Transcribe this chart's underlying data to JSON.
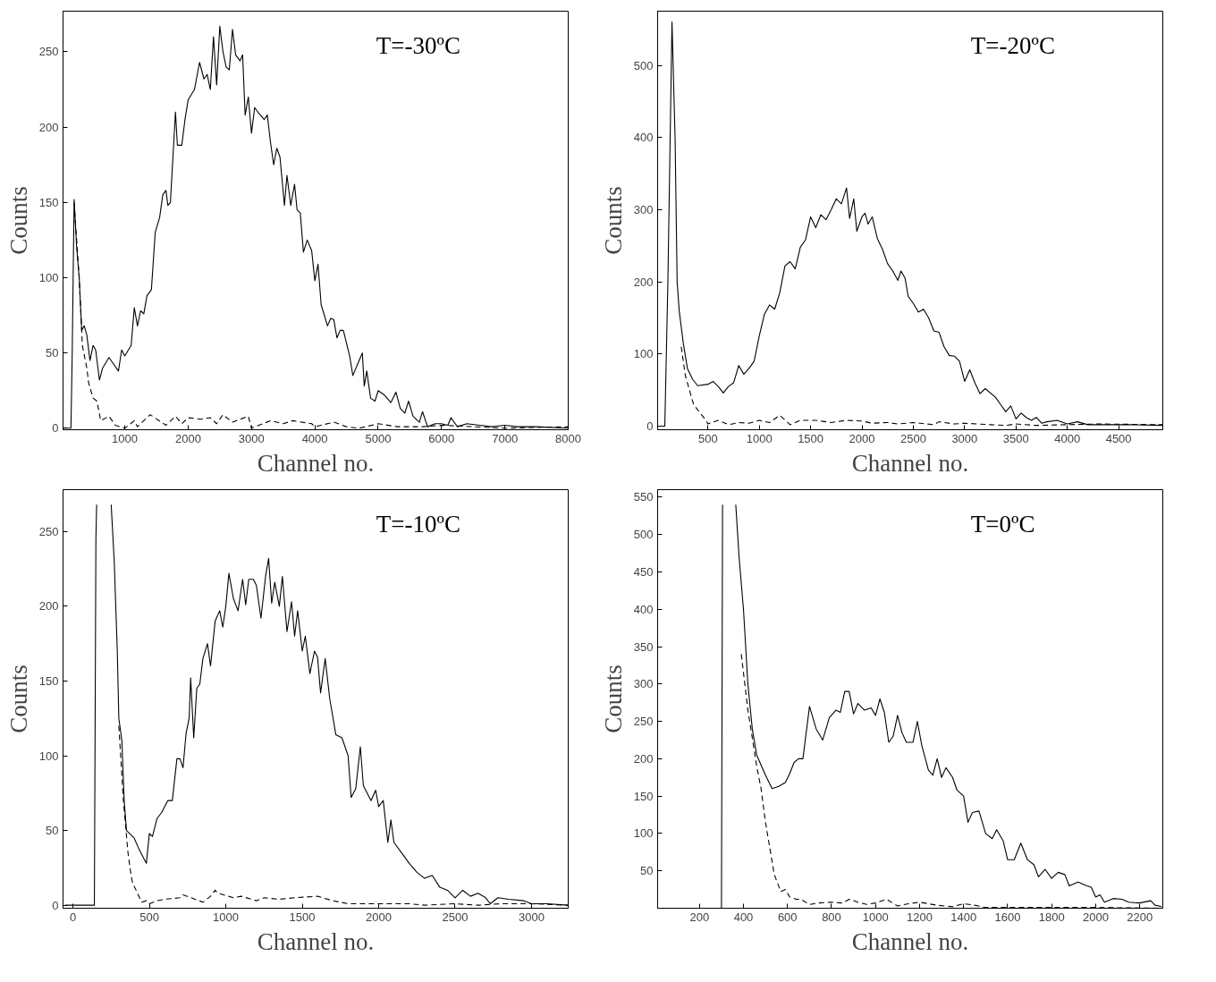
{
  "chart_data": [
    {
      "type": "line",
      "xlabel": "Channel no.",
      "ylabel": "Counts",
      "annotations": [
        "T=-30ºC"
      ],
      "xlim": [
        25,
        8000
      ],
      "ylim": [
        -1,
        277
      ],
      "xticks": [
        1000,
        2000,
        3000,
        4000,
        5000,
        6000,
        7000,
        8000
      ],
      "yticks": [
        0,
        50,
        100,
        150,
        200,
        250
      ],
      "grid": false,
      "series": [
        {
          "color": "#000000",
          "line_style": "solid",
          "x": [
            30,
            150,
            170,
            200,
            240,
            280,
            320,
            360,
            400,
            450,
            500,
            540,
            600,
            650,
            750,
            900,
            950,
            1000,
            1100,
            1150,
            1200,
            1250,
            1300,
            1350,
            1420,
            1480,
            1550,
            1600,
            1650,
            1680,
            1720,
            1800,
            1830,
            1900,
            1950,
            2000,
            2100,
            2180,
            2250,
            2300,
            2350,
            2400,
            2450,
            2500,
            2550,
            2600,
            2650,
            2700,
            2750,
            2820,
            2860,
            2900,
            2950,
            3000,
            3050,
            3100,
            3200,
            3250,
            3300,
            3350,
            3400,
            3450,
            3520,
            3560,
            3620,
            3680,
            3720,
            3770,
            3820,
            3880,
            3950,
            4000,
            4050,
            4100,
            4200,
            4250,
            4300,
            4350,
            4400,
            4450,
            4550,
            4600,
            4700,
            4750,
            4780,
            4820,
            4880,
            4950,
            5000,
            5100,
            5200,
            5280,
            5350,
            5420,
            5480,
            5550,
            5650,
            5700,
            5780,
            5900,
            6000,
            6100,
            6150,
            6250,
            6400,
            6600,
            6800,
            7000,
            7200,
            7500,
            8000
          ],
          "values": [
            0,
            0,
            50,
            152,
            120,
            100,
            65,
            68,
            62,
            45,
            55,
            52,
            32,
            40,
            47,
            38,
            52,
            48,
            55,
            80,
            68,
            78,
            76,
            88,
            92,
            130,
            140,
            155,
            158,
            148,
            150,
            210,
            188,
            188,
            205,
            218,
            225,
            243,
            232,
            235,
            225,
            260,
            228,
            267,
            250,
            240,
            238,
            265,
            248,
            244,
            248,
            208,
            220,
            196,
            213,
            210,
            205,
            208,
            190,
            175,
            186,
            180,
            148,
            168,
            148,
            162,
            145,
            143,
            117,
            125,
            118,
            98,
            109,
            82,
            68,
            73,
            72,
            60,
            65,
            65,
            48,
            35,
            45,
            50,
            28,
            38,
            20,
            18,
            25,
            22,
            17,
            24,
            13,
            10,
            18,
            8,
            4,
            11,
            1,
            3,
            3,
            2,
            7,
            1,
            3,
            2,
            1,
            2,
            1,
            1,
            0
          ]
        },
        {
          "color": "#000000",
          "line_style": "dashed",
          "x": [
            200,
            280,
            330,
            400,
            430,
            500,
            560,
            620,
            750,
            850,
            1000,
            1150,
            1200,
            1300,
            1400,
            1650,
            1800,
            1900,
            2000,
            2200,
            2350,
            2450,
            2550,
            2700,
            2950,
            3000,
            3300,
            3500,
            3650,
            3950,
            4000,
            4300,
            4500,
            4700,
            5000,
            5300,
            5700,
            6000,
            7000,
            8000
          ],
          "values": [
            150,
            100,
            55,
            40,
            30,
            20,
            18,
            5,
            8,
            2,
            0,
            5,
            1,
            5,
            9,
            2,
            8,
            3,
            7,
            6,
            7,
            3,
            9,
            4,
            8,
            0,
            5,
            3,
            5,
            3,
            1,
            4,
            1,
            0,
            3,
            1,
            1,
            2,
            0,
            1
          ]
        }
      ]
    },
    {
      "type": "line",
      "xlabel": "Channel no.",
      "ylabel": "Counts",
      "annotations": [
        "T=-20ºC"
      ],
      "xlim": [
        10,
        4930
      ],
      "ylim": [
        -5,
        575
      ],
      "xticks": [
        500,
        1000,
        1500,
        2000,
        2500,
        3000,
        3500,
        4000,
        4500
      ],
      "yticks": [
        0,
        100,
        200,
        300,
        400,
        500
      ],
      "grid": false,
      "series": [
        {
          "color": "#000000",
          "line_style": "solid",
          "x": [
            20,
            80,
            110,
            150,
            180,
            200,
            220,
            260,
            300,
            350,
            400,
            500,
            550,
            600,
            650,
            700,
            750,
            800,
            850,
            900,
            950,
            1000,
            1050,
            1100,
            1150,
            1200,
            1250,
            1300,
            1350,
            1400,
            1450,
            1500,
            1550,
            1600,
            1650,
            1700,
            1750,
            1800,
            1850,
            1880,
            1920,
            1950,
            2000,
            2030,
            2060,
            2100,
            2150,
            2200,
            2250,
            2300,
            2350,
            2380,
            2420,
            2450,
            2500,
            2550,
            2600,
            2650,
            2700,
            2750,
            2800,
            2850,
            2900,
            2950,
            3000,
            3050,
            3100,
            3150,
            3200,
            3300,
            3350,
            3400,
            3450,
            3500,
            3550,
            3600,
            3650,
            3700,
            3750,
            3800,
            3900,
            4000,
            4100,
            4200,
            4400,
            4600,
            4930
          ],
          "values": [
            0,
            0,
            200,
            560,
            400,
            200,
            160,
            115,
            80,
            65,
            56,
            58,
            62,
            55,
            46,
            55,
            60,
            84,
            72,
            80,
            90,
            125,
            155,
            168,
            162,
            185,
            222,
            228,
            218,
            248,
            258,
            290,
            275,
            293,
            286,
            300,
            315,
            308,
            330,
            288,
            315,
            270,
            290,
            295,
            280,
            290,
            260,
            245,
            225,
            215,
            202,
            215,
            205,
            180,
            170,
            158,
            162,
            150,
            132,
            130,
            110,
            98,
            97,
            90,
            62,
            78,
            60,
            45,
            52,
            40,
            30,
            20,
            28,
            10,
            18,
            12,
            8,
            12,
            4,
            6,
            8,
            3,
            6,
            2,
            2,
            2,
            1
          ]
        },
        {
          "color": "#000000",
          "line_style": "dashed",
          "x": [
            240,
            280,
            330,
            360,
            480,
            500,
            600,
            700,
            800,
            900,
            1000,
            1100,
            1200,
            1300,
            1400,
            1550,
            1700,
            1850,
            2000,
            2100,
            2250,
            2350,
            2500,
            2700,
            2750,
            2900,
            3000,
            3250,
            3400,
            3500,
            3700,
            4000,
            4300,
            4930
          ],
          "values": [
            110,
            70,
            45,
            30,
            8,
            3,
            8,
            2,
            5,
            4,
            8,
            5,
            15,
            2,
            8,
            8,
            5,
            8,
            7,
            4,
            5,
            3,
            5,
            2,
            6,
            3,
            4,
            2,
            1,
            3,
            1,
            2,
            3,
            2
          ]
        }
      ]
    },
    {
      "type": "line",
      "xlabel": "Channel no.",
      "ylabel": "Counts",
      "annotations": [
        "T=-10ºC"
      ],
      "xlim": [
        -65,
        3240
      ],
      "ylim": [
        -2,
        278
      ],
      "xticks": [
        0,
        500,
        1000,
        1500,
        2000,
        2500,
        3000
      ],
      "yticks": [
        0,
        50,
        100,
        150,
        200,
        250
      ],
      "grid": false,
      "series": [
        {
          "color": "#000000",
          "line_style": "solid",
          "x": [
            -50,
            140,
            150,
            155,
            160,
            250,
            270,
            290,
            300,
            320,
            335,
            350,
            370,
            400,
            430,
            460,
            480,
            500,
            520,
            550,
            580,
            620,
            650,
            680,
            700,
            720,
            740,
            760,
            770,
            790,
            810,
            830,
            850,
            880,
            900,
            930,
            960,
            980,
            1000,
            1020,
            1050,
            1080,
            1110,
            1130,
            1150,
            1180,
            1200,
            1230,
            1260,
            1280,
            1300,
            1320,
            1350,
            1370,
            1400,
            1430,
            1450,
            1470,
            1500,
            1520,
            1550,
            1580,
            1600,
            1620,
            1650,
            1680,
            1720,
            1760,
            1800,
            1820,
            1850,
            1880,
            1900,
            1950,
            1980,
            2000,
            2030,
            2060,
            2080,
            2100,
            2150,
            2200,
            2250,
            2300,
            2350,
            2400,
            2450,
            2500,
            2550,
            2600,
            2650,
            2700,
            2730,
            2780,
            2850,
            2950,
            3000,
            3100,
            3240
          ],
          "values": [
            0,
            0,
            245,
            268,
            null,
            268,
            230,
            170,
            125,
            110,
            70,
            50,
            48,
            45,
            38,
            32,
            28,
            48,
            46,
            58,
            62,
            70,
            70,
            98,
            98,
            92,
            115,
            125,
            152,
            112,
            145,
            148,
            165,
            175,
            160,
            190,
            197,
            186,
            200,
            222,
            205,
            197,
            218,
            201,
            218,
            218,
            214,
            192,
            220,
            232,
            202,
            216,
            200,
            220,
            183,
            203,
            180,
            197,
            170,
            180,
            155,
            170,
            166,
            142,
            165,
            138,
            114,
            112,
            100,
            72,
            78,
            106,
            80,
            70,
            77,
            66,
            70,
            42,
            57,
            42,
            35,
            28,
            22,
            18,
            20,
            12,
            10,
            5,
            10,
            6,
            8,
            5,
            1,
            5,
            4,
            3,
            1,
            1,
            0
          ]
        },
        {
          "color": "#000000",
          "line_style": "dashed",
          "x": [
            300,
            330,
            360,
            380,
            390,
            450,
            480,
            500,
            550,
            600,
            700,
            720,
            850,
            900,
            930,
            950,
            1050,
            1100,
            1200,
            1250,
            1350,
            1450,
            1600,
            1700,
            1800,
            2000,
            2200,
            2300,
            2500,
            2650,
            2800,
            3000,
            3240
          ],
          "values": [
            120,
            70,
            35,
            20,
            15,
            2,
            3,
            1,
            3,
            4,
            5,
            7,
            2,
            6,
            10,
            8,
            5,
            6,
            3,
            5,
            4,
            5,
            6,
            3,
            1,
            1,
            1,
            0,
            1,
            0,
            1,
            1,
            0
          ]
        }
      ]
    },
    {
      "type": "line",
      "xlabel": "Channel no.",
      "ylabel": "Counts",
      "annotations": [
        "T=0ºC"
      ],
      "xlim": [
        10,
        2305
      ],
      "ylim": [
        0,
        560
      ],
      "xticks": [
        200,
        400,
        600,
        800,
        1000,
        1200,
        1400,
        1600,
        1800,
        2000,
        2200
      ],
      "yticks": [
        50,
        100,
        150,
        200,
        250,
        300,
        350,
        400,
        450,
        500,
        550
      ],
      "grid": false,
      "series": [
        {
          "color": "#000000",
          "line_style": "solid",
          "x": [
            300,
            305,
            330,
            365,
            380,
            400,
            420,
            440,
            460,
            500,
            530,
            560,
            590,
            610,
            630,
            650,
            670,
            700,
            730,
            760,
            790,
            820,
            840,
            860,
            880,
            900,
            920,
            950,
            980,
            1000,
            1020,
            1040,
            1060,
            1080,
            1100,
            1120,
            1140,
            1170,
            1190,
            1210,
            1240,
            1260,
            1280,
            1300,
            1320,
            1350,
            1370,
            1400,
            1420,
            1440,
            1470,
            1500,
            1530,
            1550,
            1580,
            1600,
            1630,
            1660,
            1690,
            1720,
            1740,
            1770,
            1800,
            1830,
            1860,
            1880,
            1920,
            1960,
            1980,
            2000,
            2020,
            2040,
            2080,
            2120,
            2150,
            2200,
            2250,
            2270,
            2300
          ],
          "values": [
            0,
            540,
            null,
            540,
            470,
            400,
            300,
            240,
            205,
            178,
            160,
            163,
            168,
            180,
            195,
            200,
            200,
            270,
            240,
            225,
            255,
            265,
            262,
            290,
            290,
            260,
            274,
            265,
            268,
            258,
            280,
            262,
            222,
            230,
            258,
            235,
            222,
            222,
            250,
            218,
            185,
            178,
            200,
            175,
            188,
            175,
            158,
            150,
            115,
            128,
            130,
            100,
            93,
            105,
            90,
            65,
            65,
            87,
            65,
            58,
            42,
            52,
            40,
            48,
            45,
            30,
            35,
            30,
            28,
            15,
            18,
            8,
            13,
            12,
            8,
            7,
            10,
            4,
            2
          ]
        },
        {
          "color": "#000000",
          "line_style": "dashed",
          "x": [
            390,
            420,
            440,
            460,
            480,
            500,
            520,
            540,
            570,
            590,
            610,
            640,
            660,
            700,
            740,
            800,
            850,
            880,
            920,
            960,
            1000,
            1050,
            1100,
            1150,
            1200,
            1280,
            1350,
            1400,
            1450,
            1500,
            1700,
            2000,
            2300
          ],
          "values": [
            340,
            265,
            228,
            190,
            160,
            115,
            80,
            45,
            22,
            25,
            15,
            12,
            12,
            5,
            7,
            8,
            7,
            12,
            8,
            5,
            7,
            12,
            3,
            6,
            8,
            4,
            2,
            6,
            4,
            1,
            1,
            1,
            0
          ]
        }
      ]
    }
  ]
}
